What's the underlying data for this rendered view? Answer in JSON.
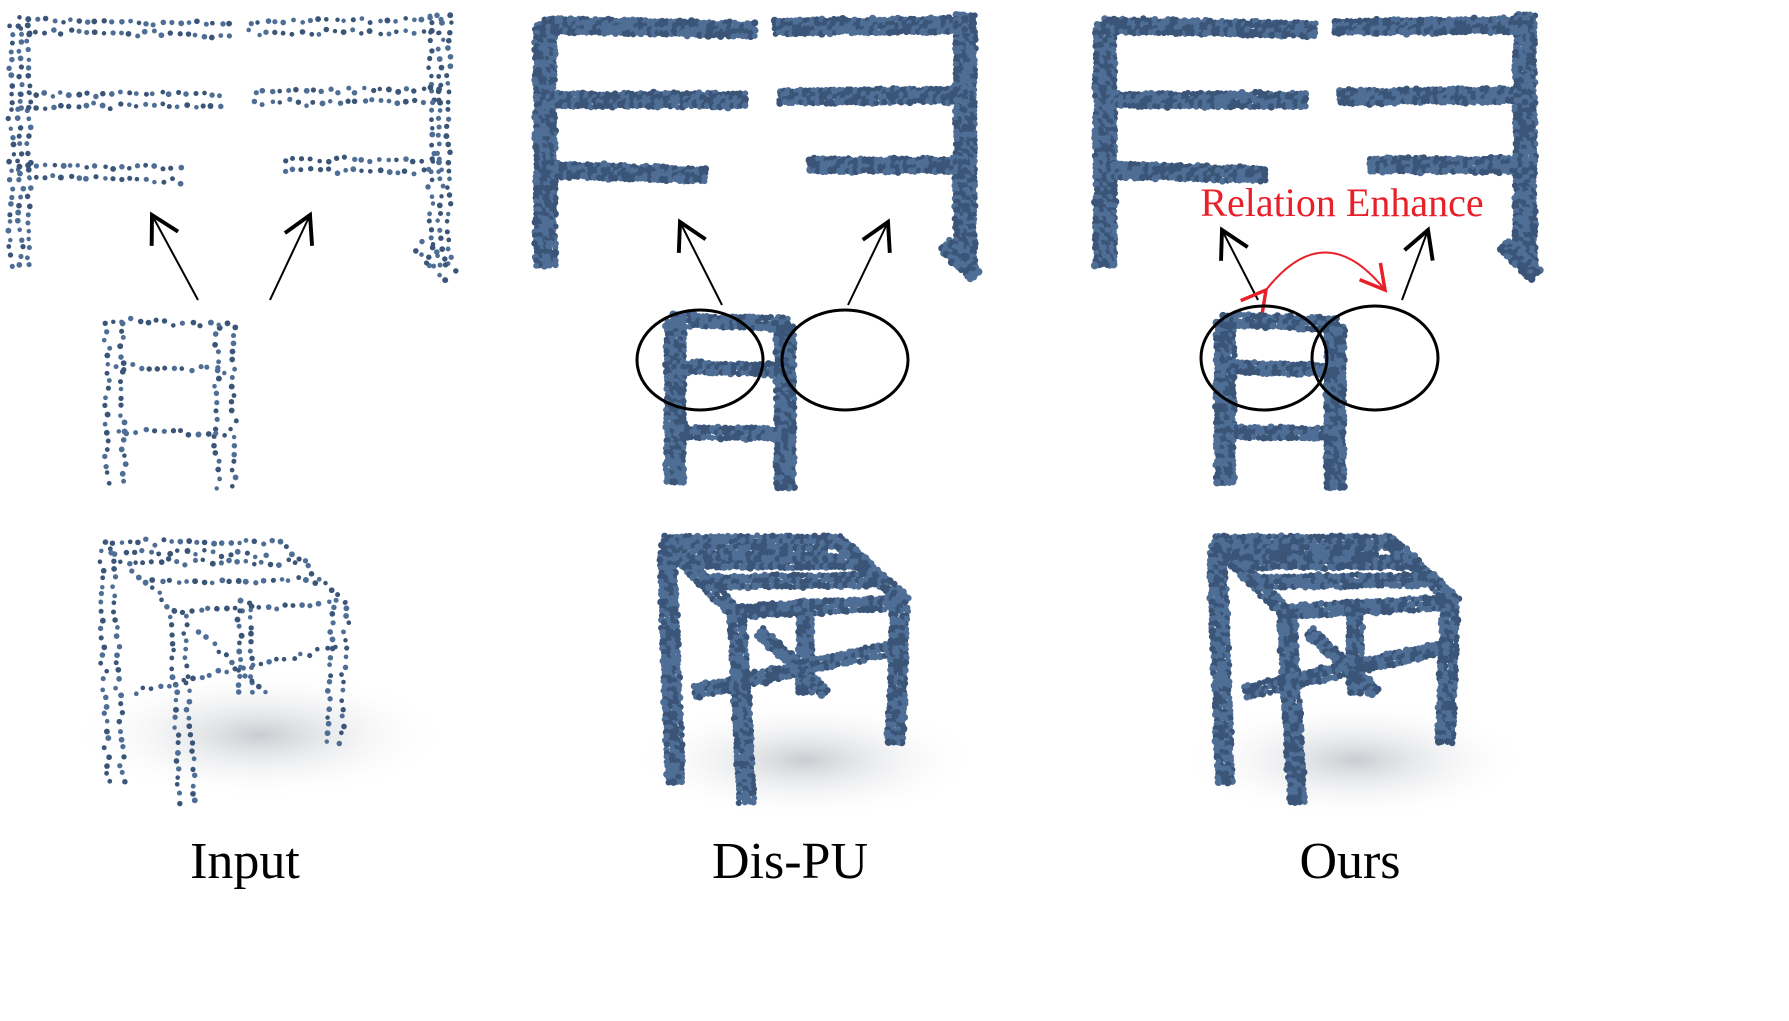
{
  "figure": {
    "panels": [
      {
        "id": "input",
        "caption": "Input",
        "style": "sparse"
      },
      {
        "id": "dispu",
        "caption": "Dis-PU",
        "style": "dense"
      },
      {
        "id": "ours",
        "caption": "Ours",
        "style": "dense"
      }
    ],
    "annotation": "Relation Enhance",
    "colors": {
      "point_fill": "#4f6e96",
      "point_dark": "#3a5578",
      "shadow": "#d9dce0",
      "arrow": "#000000",
      "highlight_circle": "#000000",
      "annotation": "#e8202a"
    }
  }
}
